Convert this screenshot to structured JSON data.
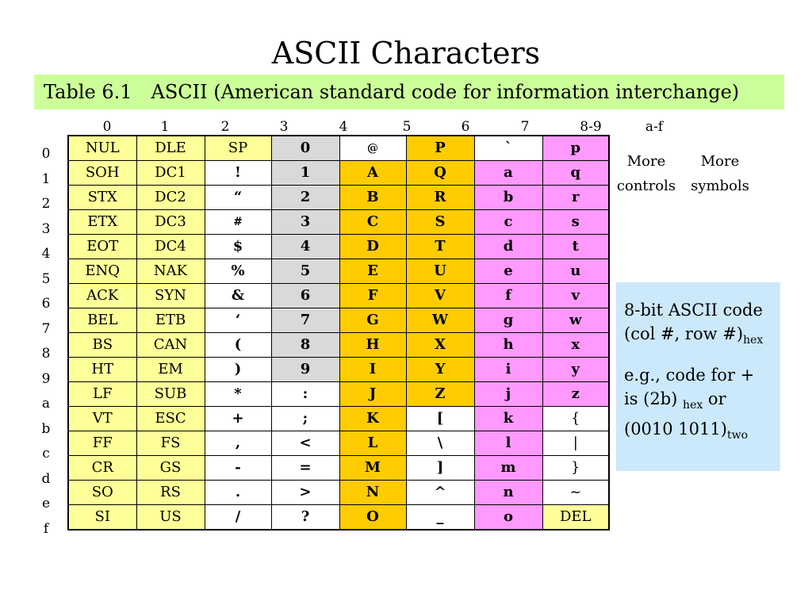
{
  "title": "ASCII Characters",
  "caption": {
    "label": "Table 6.1",
    "text": "ASCII (American standard code for information interchange)"
  },
  "column_headers": [
    "0",
    "1",
    "2",
    "3",
    "4",
    "5",
    "6",
    "7"
  ],
  "extra_headers": {
    "col_8_9": "8-9",
    "col_a_f": "a-f",
    "col_8_9_desc_line1": "More",
    "col_8_9_desc_line2": "controls",
    "col_a_f_desc_line1": "More",
    "col_a_f_desc_line2": "symbols"
  },
  "row_headers": [
    "0",
    "1",
    "2",
    "3",
    "4",
    "5",
    "6",
    "7",
    "8",
    "9",
    "a",
    "b",
    "c",
    "d",
    "e",
    "f"
  ],
  "colors": {
    "caption_bg": "#ccff99",
    "control": "#ffff99",
    "white": "#ffffff",
    "digit": "#d9d9d9",
    "upper": "#ffcc00",
    "lower": "#ff99ff",
    "note_bg": "#cce9fb"
  },
  "cells": [
    [
      "NUL",
      "DLE",
      "SP",
      "0",
      "@",
      "P",
      "`",
      "p"
    ],
    [
      "SOH",
      "DC1",
      "!",
      "1",
      "A",
      "Q",
      "a",
      "q"
    ],
    [
      "STX",
      "DC2",
      "“",
      "2",
      "B",
      "R",
      "b",
      "r"
    ],
    [
      "ETX",
      "DC3",
      "#",
      "3",
      "C",
      "S",
      "c",
      "s"
    ],
    [
      "EOT",
      "DC4",
      "$",
      "4",
      "D",
      "T",
      "d",
      "t"
    ],
    [
      "ENQ",
      "NAK",
      "%",
      "5",
      "E",
      "U",
      "e",
      "u"
    ],
    [
      "ACK",
      "SYN",
      "&",
      "6",
      "F",
      "V",
      "f",
      "v"
    ],
    [
      "BEL",
      "ETB",
      "‘",
      "7",
      "G",
      "W",
      "g",
      "w"
    ],
    [
      "BS",
      "CAN",
      "(",
      "8",
      "H",
      "X",
      "h",
      "x"
    ],
    [
      "HT",
      "EM",
      ")",
      "9",
      "I",
      "Y",
      "i",
      "y"
    ],
    [
      "LF",
      "SUB",
      "*",
      ":",
      "J",
      "Z",
      "j",
      "z"
    ],
    [
      "VT",
      "ESC",
      "+",
      ";",
      "K",
      "[",
      "k",
      "{"
    ],
    [
      "FF",
      "FS",
      ",",
      "<",
      "L",
      "\\",
      "l",
      "|"
    ],
    [
      "CR",
      "GS",
      "-",
      "=",
      "M",
      "]",
      "m",
      "}"
    ],
    [
      "SO",
      "RS",
      ".",
      ">",
      "N",
      "^",
      "n",
      "~"
    ],
    [
      "SI",
      "US",
      "/",
      "?",
      "O",
      "_",
      "o",
      "DEL"
    ]
  ],
  "note": {
    "line1": "8-bit ASCII code",
    "line2": "(col #, row #)",
    "line2_sub": "hex",
    "line3": "e.g., code for +",
    "line4_a": "is (2b) ",
    "line4_sub": "hex",
    "line4_b": " or",
    "line5": "(0010 1011)",
    "line5_sub": "two"
  }
}
